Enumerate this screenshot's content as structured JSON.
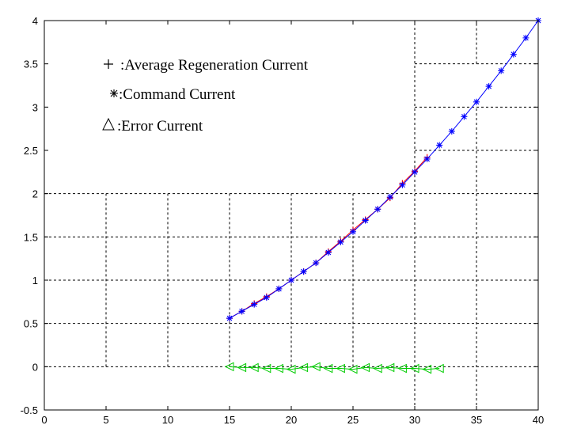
{
  "chart_data": {
    "type": "line",
    "title": "",
    "xlabel": "",
    "ylabel": "",
    "xlim": [
      0,
      40
    ],
    "ylim": [
      -0.5,
      4
    ],
    "grid": "partial dashed",
    "xticks": [
      "0",
      "5",
      "10",
      "15",
      "20",
      "25",
      "30",
      "35",
      "40"
    ],
    "yticks": [
      "-0.5",
      "0",
      "0.5",
      "1",
      "1.5",
      "2",
      "2.5",
      "3",
      "3.5",
      "4"
    ],
    "annotations": [
      {
        "marker": "+",
        "text": ":Average Regeneration Current"
      },
      {
        "marker": "*",
        "text": ":Command Current"
      },
      {
        "marker": "Δ",
        "text": ":Error Current"
      }
    ],
    "series": [
      {
        "color": "#ff0000",
        "marker": "+",
        "x": [
          15,
          16,
          17,
          18,
          19,
          20,
          21,
          22,
          23,
          24,
          25,
          26,
          27,
          28,
          29,
          30,
          31
        ],
        "y": [
          0.56,
          0.64,
          0.73,
          0.81,
          0.9,
          1.0,
          1.1,
          1.2,
          1.33,
          1.45,
          1.58,
          1.7,
          1.82,
          1.95,
          2.12,
          2.26,
          2.42
        ]
      },
      {
        "color": "#0000ff",
        "marker": "*",
        "x": [
          15,
          16,
          17,
          18,
          19,
          20,
          21,
          22,
          23,
          24,
          25,
          26,
          27,
          28,
          29,
          30,
          31,
          32,
          33,
          34,
          35,
          36,
          37,
          38,
          39,
          40
        ],
        "y": [
          0.56,
          0.64,
          0.72,
          0.8,
          0.9,
          1.0,
          1.1,
          1.2,
          1.32,
          1.44,
          1.56,
          1.69,
          1.82,
          1.96,
          2.1,
          2.25,
          2.4,
          2.56,
          2.72,
          2.89,
          3.06,
          3.24,
          3.42,
          3.61,
          3.8,
          4.0
        ]
      },
      {
        "color": "#00cc00",
        "marker": "triangle-left",
        "x": [
          15,
          16,
          17,
          18,
          19,
          20,
          21,
          22,
          23,
          24,
          25,
          26,
          27,
          28,
          29,
          30,
          31,
          32
        ],
        "y": [
          0.0,
          -0.01,
          -0.01,
          -0.02,
          -0.02,
          -0.03,
          -0.01,
          0.0,
          -0.02,
          -0.02,
          -0.03,
          -0.01,
          -0.02,
          -0.01,
          -0.02,
          -0.02,
          -0.03,
          -0.02
        ]
      }
    ]
  }
}
